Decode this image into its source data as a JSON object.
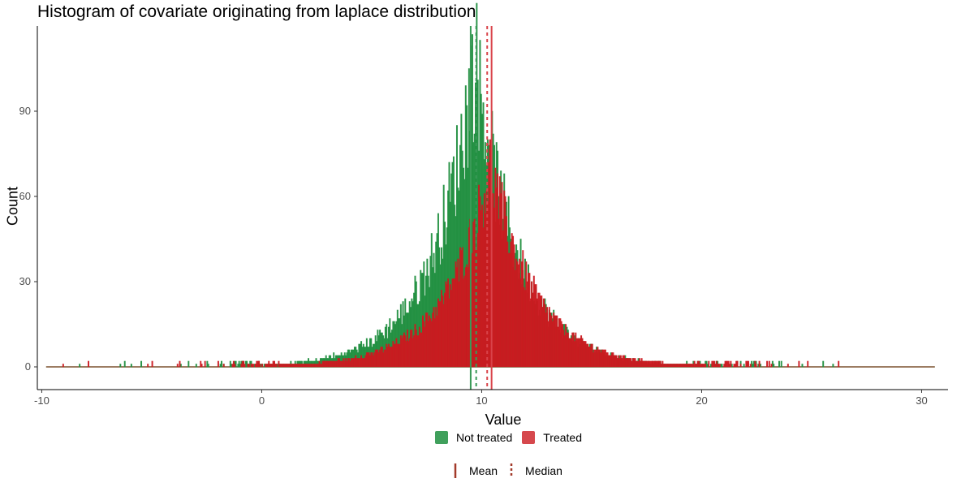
{
  "colors": {
    "not_treated": "#1f8f3f",
    "treated": "#cc1a20",
    "axis": "#000000",
    "tick_text": "#4d4d4d",
    "mean_median_legend": "#a23a2a"
  },
  "chart_data": {
    "type": "bar",
    "subtype": "histogram",
    "title": "Histogram of covariate originating from laplace distribution",
    "xlabel": "Value",
    "ylabel": "Count",
    "xlim": [
      -10.2,
      31.2
    ],
    "ylim": [
      -8,
      120
    ],
    "xticks": [
      -10,
      0,
      10,
      20,
      30
    ],
    "yticks": [
      0,
      30,
      60,
      90
    ],
    "grid": false,
    "legend_position": "bottom",
    "series": [
      {
        "name": "Not treated",
        "distribution": "laplace",
        "location": 9.7,
        "scale": 1.9,
        "peak_count": 109,
        "mean": 9.5,
        "median": 9.75
      },
      {
        "name": "Treated",
        "distribution": "laplace",
        "location": 10.4,
        "scale": 2.0,
        "peak_count": 71,
        "mean": 10.45,
        "median": 10.25
      }
    ],
    "reference_lines": [
      {
        "series": "Not treated",
        "kind": "Mean",
        "x": 9.5
      },
      {
        "series": "Not treated",
        "kind": "Median",
        "x": 9.75
      },
      {
        "series": "Treated",
        "kind": "Median",
        "x": 10.25
      },
      {
        "series": "Treated",
        "kind": "Mean",
        "x": 10.45
      }
    ]
  },
  "legend": {
    "fill": [
      {
        "label": "Not treated",
        "color": "#1f8f3f"
      },
      {
        "label": "Treated",
        "color": "#cc1a20"
      }
    ],
    "lines": [
      {
        "label": "Mean"
      },
      {
        "label": "Median"
      }
    ]
  }
}
